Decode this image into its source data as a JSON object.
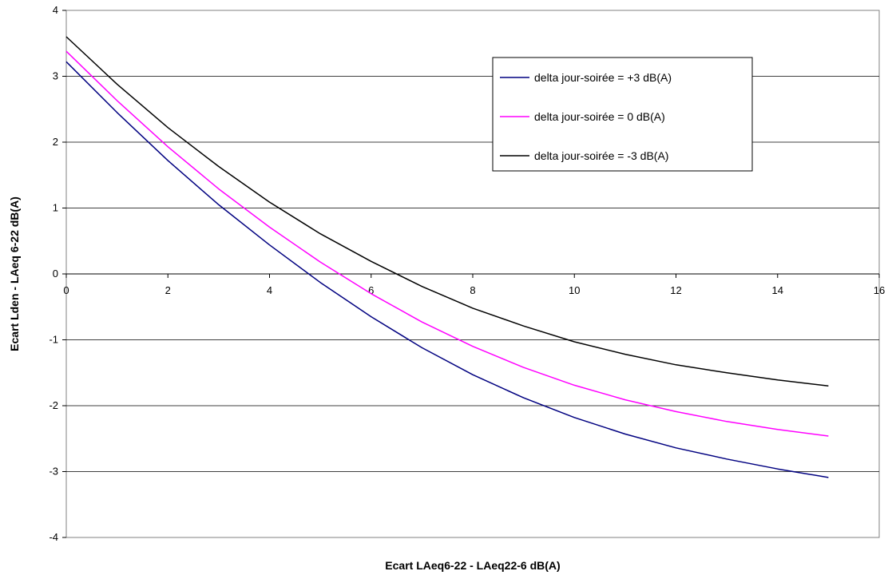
{
  "chart_data": {
    "type": "line",
    "xlabel": "Ecart LAeq6-22 - LAeq22-6   dB(A)",
    "ylabel": "Ecart Lden - LAeq 6-22   dB(A)",
    "xlim": [
      0,
      16
    ],
    "ylim": [
      -4,
      4
    ],
    "x_ticks": [
      "0",
      "2",
      "4",
      "6",
      "8",
      "10",
      "12",
      "14",
      "16"
    ],
    "y_ticks": [
      "4",
      "3",
      "2",
      "1",
      "0",
      "-1",
      "-2",
      "-3",
      "-4"
    ],
    "grid": "horizontal",
    "legend_position": "top-right",
    "x": [
      0,
      1,
      2,
      3,
      4,
      5,
      6,
      7,
      8,
      9,
      10,
      11,
      12,
      13,
      14,
      15
    ],
    "series": [
      {
        "name": "delta jour-soirée = +3 dB(A)",
        "color": "#000080",
        "values": [
          3.22,
          2.45,
          1.72,
          1.05,
          0.44,
          -0.13,
          -0.65,
          -1.12,
          -1.53,
          -1.88,
          -2.18,
          -2.43,
          -2.64,
          -2.81,
          -2.96,
          -3.09
        ]
      },
      {
        "name": "delta jour-soirée = 0 dB(A)",
        "color": "#ff00ff",
        "values": [
          3.38,
          2.63,
          1.93,
          1.29,
          0.71,
          0.18,
          -0.3,
          -0.73,
          -1.1,
          -1.42,
          -1.69,
          -1.91,
          -2.09,
          -2.24,
          -2.36,
          -2.46
        ]
      },
      {
        "name": "delta jour-soirée = -3 dB(A)",
        "color": "#000000",
        "values": [
          3.6,
          2.88,
          2.22,
          1.63,
          1.09,
          0.61,
          0.19,
          -0.19,
          -0.52,
          -0.79,
          -1.03,
          -1.22,
          -1.38,
          -1.5,
          -1.61,
          -1.7
        ]
      }
    ]
  }
}
